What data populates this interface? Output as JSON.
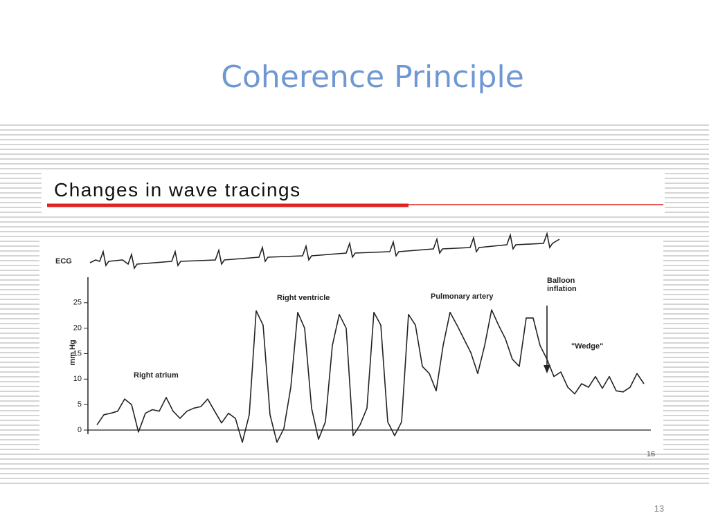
{
  "slide": {
    "title": "Coherence Principle",
    "subtitle": "Changes in wave tracings",
    "page_number": "13",
    "figure_number": "16"
  },
  "chart_data": {
    "type": "line",
    "series_label": "ECG",
    "ylabel": "mm Hg",
    "annotations": [
      "Right atrium",
      "Right ventricle",
      "Pulmonary artery",
      "Balloon",
      "inflation",
      "\"Wedge\""
    ],
    "ylim": [
      0,
      30
    ],
    "yticks": [
      0,
      5,
      10,
      15,
      20,
      25
    ],
    "categories": [
      null,
      null,
      null,
      null,
      null,
      null,
      null,
      null,
      null,
      null,
      null,
      null,
      null,
      null,
      null,
      null,
      null,
      null,
      null,
      null,
      null,
      null,
      null,
      null,
      null,
      null,
      null,
      null,
      null,
      null,
      null,
      null,
      null,
      null,
      null,
      null,
      null,
      null,
      null,
      null,
      null,
      null,
      null,
      null,
      null,
      null,
      null,
      null,
      null,
      null,
      null,
      null,
      null,
      null,
      null,
      null,
      null,
      null,
      null,
      null,
      null,
      null,
      null,
      null,
      null,
      null,
      null,
      null,
      null,
      null,
      null,
      null,
      null,
      null,
      null,
      null,
      null,
      null,
      null,
      null
    ],
    "color": "#222222",
    "values": [
      1,
      3,
      3.3,
      3.7,
      6.1,
      5,
      -0.4,
      3.3,
      4,
      3.7,
      6.4,
      3.7,
      2.3,
      3.7,
      4.3,
      4.6,
      6.1,
      3.7,
      1.4,
      3.3,
      2.3,
      -2.4,
      3,
      23.4,
      20.6,
      3,
      -2.4,
      0.3,
      8.4,
      23.1,
      20,
      4.3,
      -1.8,
      1.6,
      16.6,
      22.7,
      20,
      -1.1,
      1,
      4.3,
      23.1,
      20.6,
      1.6,
      -1.1,
      1.6,
      22.7,
      20.6,
      12.5,
      11.1,
      7.7,
      16.6,
      23.1,
      20.6,
      17.9,
      15.2,
      11.1,
      16.6,
      23.6,
      20.6,
      17.9,
      13.9,
      12.5,
      22,
      22,
      16.6,
      13.9,
      10.5,
      11.4,
      8.4,
      7.1,
      9.1,
      8.4,
      10.5,
      8.2,
      10.5,
      7.7,
      7.5,
      8.4,
      11.1,
      9.1
    ]
  }
}
